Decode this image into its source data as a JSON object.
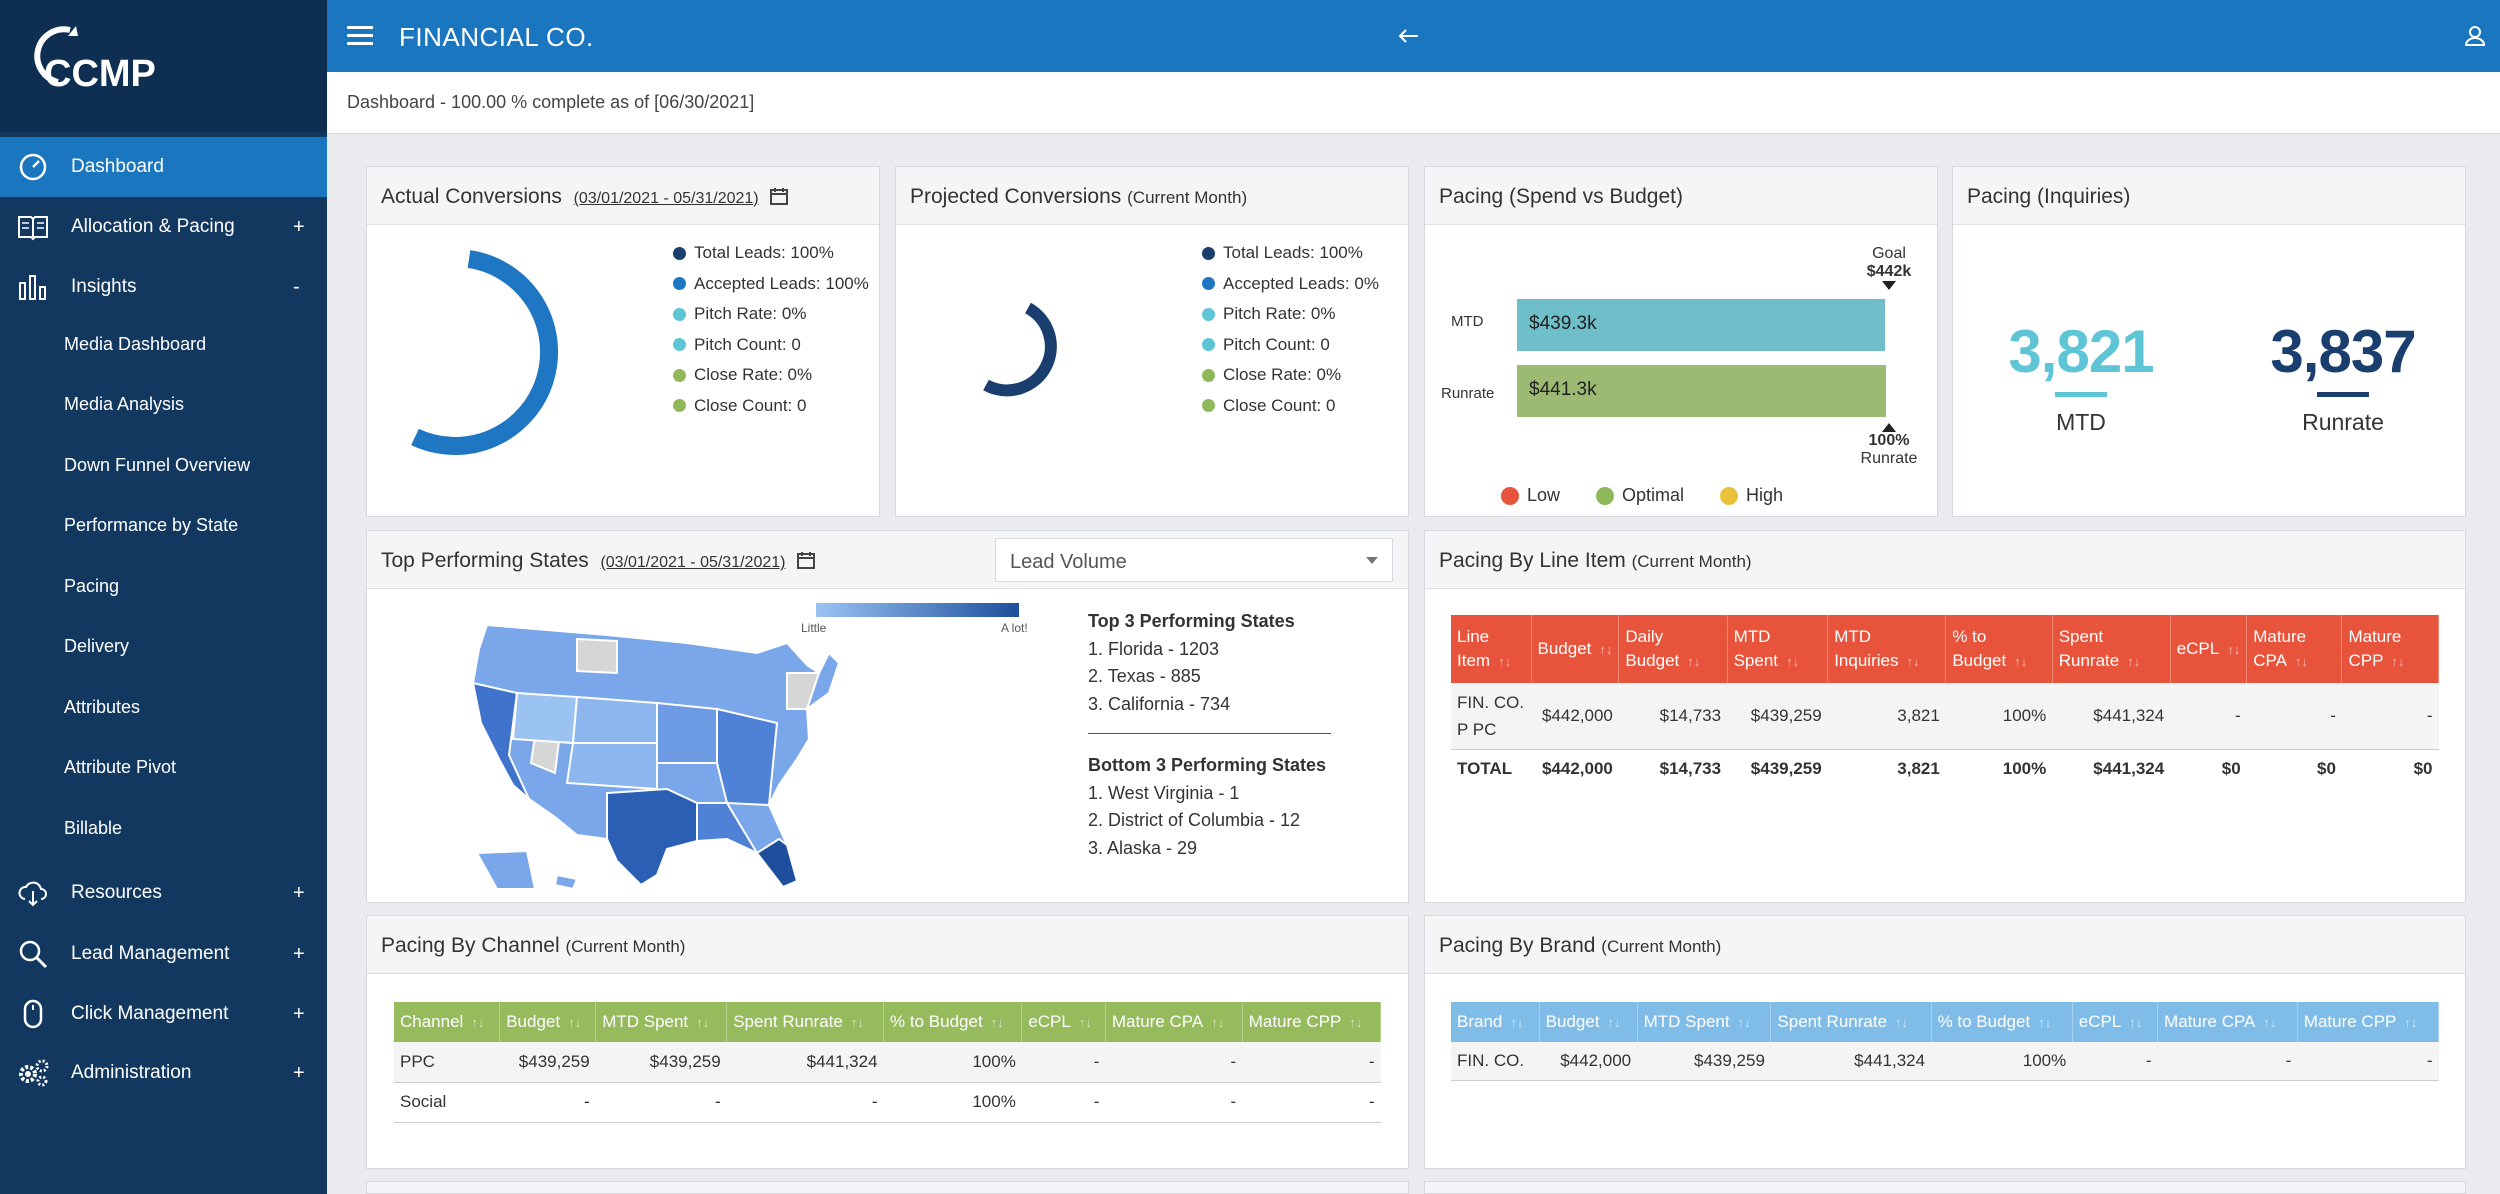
{
  "app": {
    "logo_text": "CCMP",
    "company": "FINANCIAL CO."
  },
  "status": "Dashboard - 100.00 % complete as of [06/30/2021]",
  "sidebar": {
    "items": [
      {
        "label": "Dashboard",
        "toggle": ""
      },
      {
        "label": "Allocation & Pacing",
        "toggle": "+"
      },
      {
        "label": "Insights",
        "toggle": "-"
      },
      {
        "label": "Resources",
        "toggle": "+"
      },
      {
        "label": "Lead Management",
        "toggle": "+"
      },
      {
        "label": "Click Management",
        "toggle": "+"
      },
      {
        "label": "Administration",
        "toggle": "+"
      }
    ],
    "sub_items": [
      "Media Dashboard",
      "Media Analysis",
      "Down Funnel Overview",
      "Performance by State",
      "Pacing",
      "Delivery",
      "Attributes",
      "Attribute Pivot",
      "Billable"
    ]
  },
  "actual": {
    "title": "Actual Conversions",
    "range": "(03/01/2021 - 05/31/2021)",
    "legend": [
      "Total Leads: 100%",
      "Accepted Leads: 100%",
      "Pitch Rate: 0%",
      "Pitch Count: 0",
      "Close Rate: 0%",
      "Close Count: 0"
    ]
  },
  "projected": {
    "title": "Projected Conversions",
    "subtitle": "(Current Month)",
    "legend": [
      "Total Leads: 100%",
      "Accepted Leads: 0%",
      "Pitch Rate: 0%",
      "Pitch Count: 0",
      "Close Rate: 0%",
      "Close Count: 0"
    ]
  },
  "legend_colors": [
    "#1a3e6e",
    "#1f77c4",
    "#5ec5d6",
    "#5ec5d6",
    "#8fb85a",
    "#8fb85a"
  ],
  "pacing_spend": {
    "title": "Pacing (Spend vs Budget)",
    "goal_label": "Goal",
    "goal_value": "$442k",
    "rows": [
      {
        "label": "MTD",
        "value": "$439.3k"
      },
      {
        "label": "Runrate",
        "value": "$441.3k"
      }
    ],
    "runrate_pct": "100%",
    "runrate_label": "Runrate",
    "legend": [
      "Low",
      "Optimal",
      "High"
    ],
    "legend_colors": [
      "#e8533b",
      "#8fb85a",
      "#e9c23b"
    ]
  },
  "pacing_inquiries": {
    "title": "Pacing (Inquiries)",
    "mtd_value": "3,821",
    "mtd_label": "MTD",
    "runrate_value": "3,837",
    "runrate_label": "Runrate"
  },
  "states": {
    "title": "Top Performing States",
    "range": "(03/01/2021 - 05/31/2021)",
    "dropdown": "Lead Volume",
    "scale_low": "Little",
    "scale_high": "A lot!",
    "top_heading": "Top 3 Performing States",
    "top": [
      "1. Florida - 1203",
      "2. Texas - 885",
      "3. California - 734"
    ],
    "bottom_heading": "Bottom 3 Performing States",
    "bottom": [
      "1. West Virginia - 1",
      "2. District of Columbia - 12",
      "3. Alaska - 29"
    ]
  },
  "line_item": {
    "title": "Pacing By Line Item",
    "subtitle": "(Current Month)",
    "headers": [
      "Line Item",
      "Budget",
      "Daily Budget",
      "MTD Spent",
      "MTD Inquiries",
      "% to Budget",
      "Spent Runrate",
      "eCPL",
      "Mature CPA",
      "Mature CPP"
    ],
    "rows": [
      [
        "FIN. CO. P PC",
        "$442,000",
        "$14,733",
        "$439,259",
        "3,821",
        "100%",
        "$441,324",
        "-",
        "-",
        "-"
      ]
    ],
    "total": [
      "TOTAL",
      "$442,000",
      "$14,733",
      "$439,259",
      "3,821",
      "100%",
      "$441,324",
      "$0",
      "$0",
      "$0"
    ]
  },
  "channel": {
    "title": "Pacing By Channel",
    "subtitle": "(Current Month)",
    "headers": [
      "Channel",
      "Budget",
      "MTD Spent",
      "Spent Runrate",
      "% to Budget",
      "eCPL",
      "Mature CPA",
      "Mature CPP"
    ],
    "rows": [
      [
        "PPC",
        "$439,259",
        "$439,259",
        "$441,324",
        "100%",
        "-",
        "-",
        "-"
      ],
      [
        "Social",
        "-",
        "-",
        "-",
        "100%",
        "-",
        "-",
        "-"
      ]
    ]
  },
  "brand": {
    "title": "Pacing By Brand",
    "subtitle": "(Current Month)",
    "headers": [
      "Brand",
      "Budget",
      "MTD Spent",
      "Spent Runrate",
      "% to Budget",
      "eCPL",
      "Mature CPA",
      "Mature CPP"
    ],
    "rows": [
      [
        "FIN. CO.",
        "$442,000",
        "$439,259",
        "$441,324",
        "100%",
        "-",
        "-",
        "-"
      ]
    ]
  },
  "colors": {
    "primary": "#1b76c0",
    "sidebar": "#12385f",
    "channel_header": "#95bb5c",
    "brand_header": "#7fbde8",
    "line_header": "#e8533b",
    "teal": "#5ec5d6",
    "navy": "#1a3e6e"
  }
}
